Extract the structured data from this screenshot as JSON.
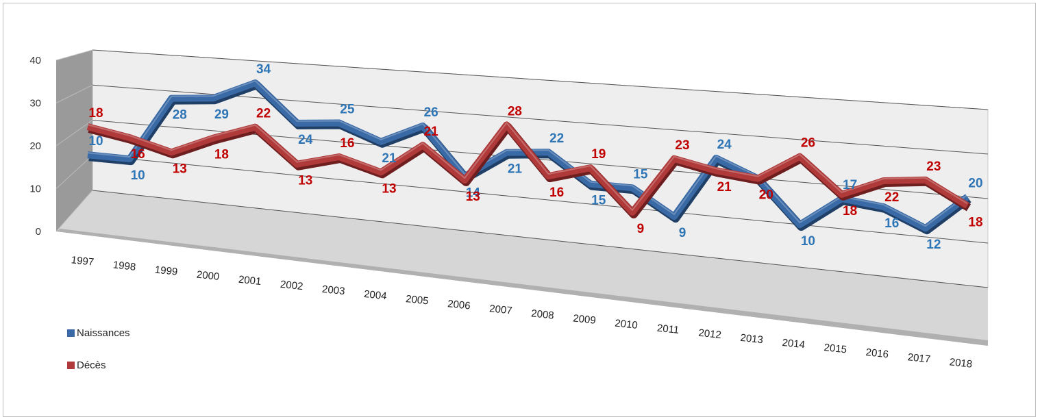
{
  "chart_data": {
    "type": "line",
    "title": "",
    "xlabel": "",
    "ylabel": "",
    "categories": [
      "1997",
      "1998",
      "1999",
      "2000",
      "2001",
      "2002",
      "2003",
      "2004",
      "2005",
      "2006",
      "2007",
      "2008",
      "2009",
      "2010",
      "2011",
      "2012",
      "2013",
      "2014",
      "2015",
      "2016",
      "2017",
      "2018"
    ],
    "y_ticks": [
      "0",
      "10",
      "20",
      "30",
      "40"
    ],
    "ylim": [
      0,
      40
    ],
    "series": [
      {
        "name": "Naissances",
        "color": "#3a6aa6",
        "label_color": "#2e75b6",
        "values": [
          10,
          10,
          28,
          29,
          34,
          24,
          25,
          21,
          26,
          14,
          21,
          22,
          15,
          15,
          9,
          24,
          20,
          10,
          17,
          16,
          12,
          20
        ]
      },
      {
        "name": "Décès",
        "color": "#b03a3a",
        "label_color": "#c00000",
        "values": [
          18,
          16,
          13,
          18,
          22,
          13,
          16,
          13,
          21,
          13,
          28,
          16,
          19,
          9,
          23,
          21,
          20,
          26,
          18,
          22,
          23,
          18
        ]
      }
    ],
    "legend_position": "bottom-left",
    "style": "3d-line",
    "grid": true
  }
}
